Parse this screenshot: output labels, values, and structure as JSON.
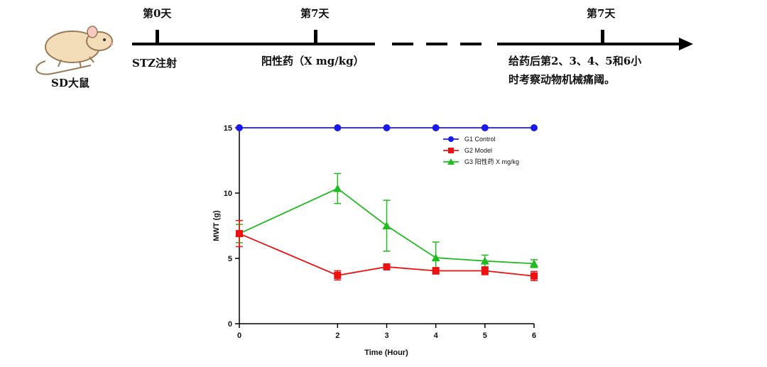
{
  "timeline": {
    "animal_label": "SD大鼠",
    "day0_label": "第0天",
    "day7_label_1": "第7天",
    "day7_label_2": "第7天",
    "stz_label": "STZ注射",
    "drug_label": "阳性药（X mg/kg）",
    "observe_line1": "给药后第2、3、4、5和6小",
    "observe_line2": "时考察动物机械痛阈。"
  },
  "colors": {
    "g1": "#1a1aee",
    "g2": "#ee1111",
    "g3": "#22bb22",
    "rat_body": "#f3dcb8",
    "rat_outline": "#9a7a55"
  },
  "chart_data": {
    "type": "line",
    "xlabel": "Time (Hour)",
    "ylabel": "MWT (g)",
    "x": [
      0,
      2,
      3,
      4,
      5,
      6
    ],
    "xticks": [
      0,
      2,
      3,
      4,
      5,
      6
    ],
    "yticks": [
      0,
      5,
      10,
      15
    ],
    "xlim": [
      0,
      6
    ],
    "ylim": [
      0,
      15
    ],
    "legend_position": "top-right",
    "series": [
      {
        "name": "G1 Control",
        "marker": "circle",
        "color": "#1a1aee",
        "values": [
          15,
          15,
          15,
          15,
          15,
          15
        ],
        "err": [
          0,
          0,
          0,
          0,
          0,
          0
        ]
      },
      {
        "name": "G2 Model",
        "marker": "square",
        "color": "#ee1111",
        "values": [
          6.9,
          3.7,
          4.35,
          4.05,
          4.05,
          3.65
        ],
        "err": [
          1.0,
          0.35,
          0.2,
          0.25,
          0.3,
          0.35
        ]
      },
      {
        "name": "G3 阳性药 X mg/kg",
        "marker": "triangle",
        "color": "#22bb22",
        "values": [
          6.9,
          10.35,
          7.5,
          5.05,
          4.8,
          4.6
        ],
        "err": [
          0.7,
          1.15,
          1.95,
          1.2,
          0.45,
          0.3
        ]
      }
    ]
  }
}
